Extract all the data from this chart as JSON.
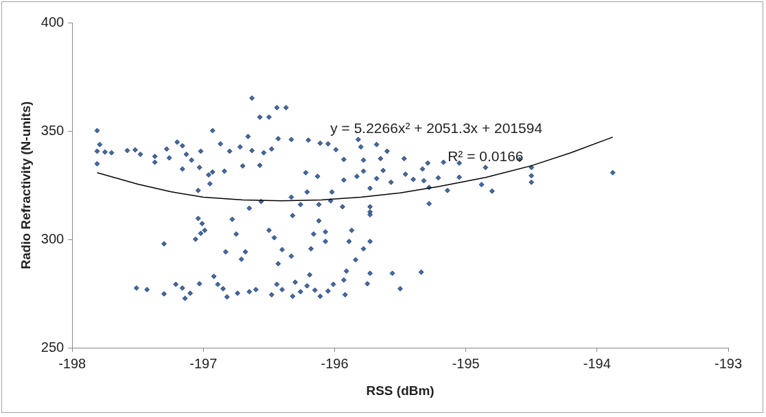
{
  "chart_data": {
    "type": "scatter",
    "xlabel": "RSS (dBm)",
    "ylabel": "Radio Refractivity (N-units)",
    "xlim": [
      -198,
      -193
    ],
    "xticks": [
      -198,
      -197,
      -196,
      -195,
      -194,
      -193
    ],
    "ylim": [
      250,
      400
    ],
    "yticks": [
      250,
      300,
      350,
      400
    ],
    "grid": false,
    "legend": false,
    "marker": "diamond",
    "annotations": [
      "y = 5.2266x² + 2051.3x + 201594",
      "R² = 0.0166"
    ],
    "series": [
      {
        "type": "scatter",
        "color": "#3f6aa8",
        "x": [
          -197.81,
          -197.81,
          -197.79,
          -197.81,
          -197.75,
          -197.7,
          -197.58,
          -197.52,
          -197.48,
          -197.37,
          -197.37,
          -197.28,
          -197.26,
          -197.2,
          -197.16,
          -197.13,
          -197.16,
          -197.09,
          -197.02,
          -196.93,
          -196.87,
          -196.8,
          -196.72,
          -196.66,
          -196.63,
          -196.54,
          -196.48,
          -196.57,
          -196.7,
          -196.84,
          -196.93,
          -197.03,
          -196.95,
          -197.04,
          -196.96,
          -196.63,
          -196.44,
          -196.5,
          -196.57,
          -197.04,
          -197.01,
          -196.99,
          -197.02,
          -197.06,
          -197.3,
          -197.51,
          -197.43,
          -197.3,
          -197.21,
          -197.16,
          -197.14,
          -197.1,
          -197.03,
          -196.92,
          -196.89,
          -196.85,
          -196.82,
          -196.74,
          -196.65,
          -196.6,
          -196.71,
          -196.68,
          -196.83,
          -196.75,
          -196.78,
          -196.65,
          -196.56,
          -196.5,
          -196.46,
          -196.4,
          -196.33,
          -196.43,
          -196.44,
          -196.48,
          -196.4,
          -196.32,
          -196.26,
          -196.19,
          -196.3,
          -196.21,
          -196.15,
          -196.11,
          -196.05,
          -196.01,
          -195.92,
          -195.93,
          -195.91,
          -195.84,
          -195.89,
          -195.87,
          -196.07,
          -196.07,
          -196.18,
          -196.16,
          -196.12,
          -196.26,
          -196.32,
          -196.33,
          -196.21,
          -196.12,
          -196.03,
          -195.94,
          -195.73,
          -195.73,
          -195.73,
          -195.78,
          -195.73,
          -195.75,
          -195.56,
          -195.34,
          -195.5,
          -196.37,
          -196.43,
          -196.33,
          -196.2,
          -196.11,
          -196.05,
          -195.82,
          -195.68,
          -195.99,
          -195.8,
          -195.6,
          -195.93,
          -195.78,
          -195.65,
          -195.47,
          -195.29,
          -195.17,
          -195.05,
          -196.22,
          -196.13,
          -195.93,
          -195.83,
          -195.78,
          -195.68,
          -195.63,
          -195.57,
          -195.46,
          -195.4,
          -195.33,
          -195.32,
          -195.21,
          -195.05,
          -195.14,
          -194.88,
          -195.28,
          -195.28,
          -196.02,
          -195.73,
          -195.73,
          -194.59,
          -194.85,
          -194.8,
          -194.5,
          -194.5,
          -194.5,
          -193.88
        ],
        "values": [
          350.2,
          340.7,
          343.8,
          334.9,
          340.3,
          340,
          341,
          341.3,
          339.3,
          338.3,
          335.6,
          341.7,
          337.6,
          344.9,
          343.2,
          339.3,
          332.5,
          336.6,
          340.7,
          350.2,
          344.1,
          340.7,
          342.7,
          347.5,
          341,
          340,
          341.7,
          334.2,
          333.9,
          331.5,
          331.1,
          333.2,
          325.7,
          322.6,
          329.8,
          365.2,
          360.8,
          356.4,
          356.4,
          309.7,
          307.3,
          304.2,
          302.8,
          300.1,
          298,
          277.6,
          276.9,
          274.9,
          279.3,
          277.6,
          272.8,
          275.2,
          279.6,
          283,
          279.3,
          277.3,
          273.5,
          275.2,
          275.9,
          276.9,
          290.9,
          294.3,
          294.3,
          302.5,
          309.3,
          314.4,
          317.5,
          304.2,
          300.8,
          295.3,
          292.3,
          288.8,
          279.3,
          274.5,
          276.9,
          273.8,
          275.9,
          283.7,
          280.3,
          278.6,
          276.6,
          273.8,
          276.2,
          279.3,
          274.5,
          281.3,
          285.4,
          290.6,
          299.1,
          304.2,
          303.5,
          299.1,
          295.7,
          302.5,
          308.6,
          316.1,
          311,
          319.5,
          321.9,
          316.1,
          317.8,
          315.1,
          312.7,
          323.6,
          299.1,
          295.7,
          284.4,
          279.6,
          284.4,
          284.9,
          277.3,
          360.8,
          346.5,
          346.1,
          345.8,
          344.4,
          344.1,
          346.1,
          343.8,
          341.4,
          342.7,
          340.7,
          336.9,
          336.6,
          337.3,
          337.3,
          335.2,
          335.6,
          335.2,
          330.8,
          329.1,
          327.4,
          329.1,
          331.5,
          328.1,
          331.8,
          326.4,
          330.1,
          327.7,
          332.5,
          327.1,
          328.4,
          328.7,
          322.6,
          325.3,
          324,
          316.5,
          321.9,
          315.1,
          311.4,
          336.9,
          333.2,
          322.3,
          333.2,
          329.4,
          326.4,
          330.8
        ]
      },
      {
        "type": "line",
        "color": "#000000",
        "marker": "none",
        "x": [
          -197.81,
          -197.5,
          -197.25,
          -197,
          -196.7,
          -196.4,
          -196.1,
          -195.8,
          -195.5,
          -195.2,
          -194.85,
          -194.5,
          -194.2,
          -193.88
        ],
        "values": [
          330.8,
          325.5,
          322,
          319.5,
          318.2,
          317.8,
          318.2,
          319.5,
          321.5,
          324.5,
          328.6,
          334,
          340,
          347.2
        ]
      }
    ]
  }
}
